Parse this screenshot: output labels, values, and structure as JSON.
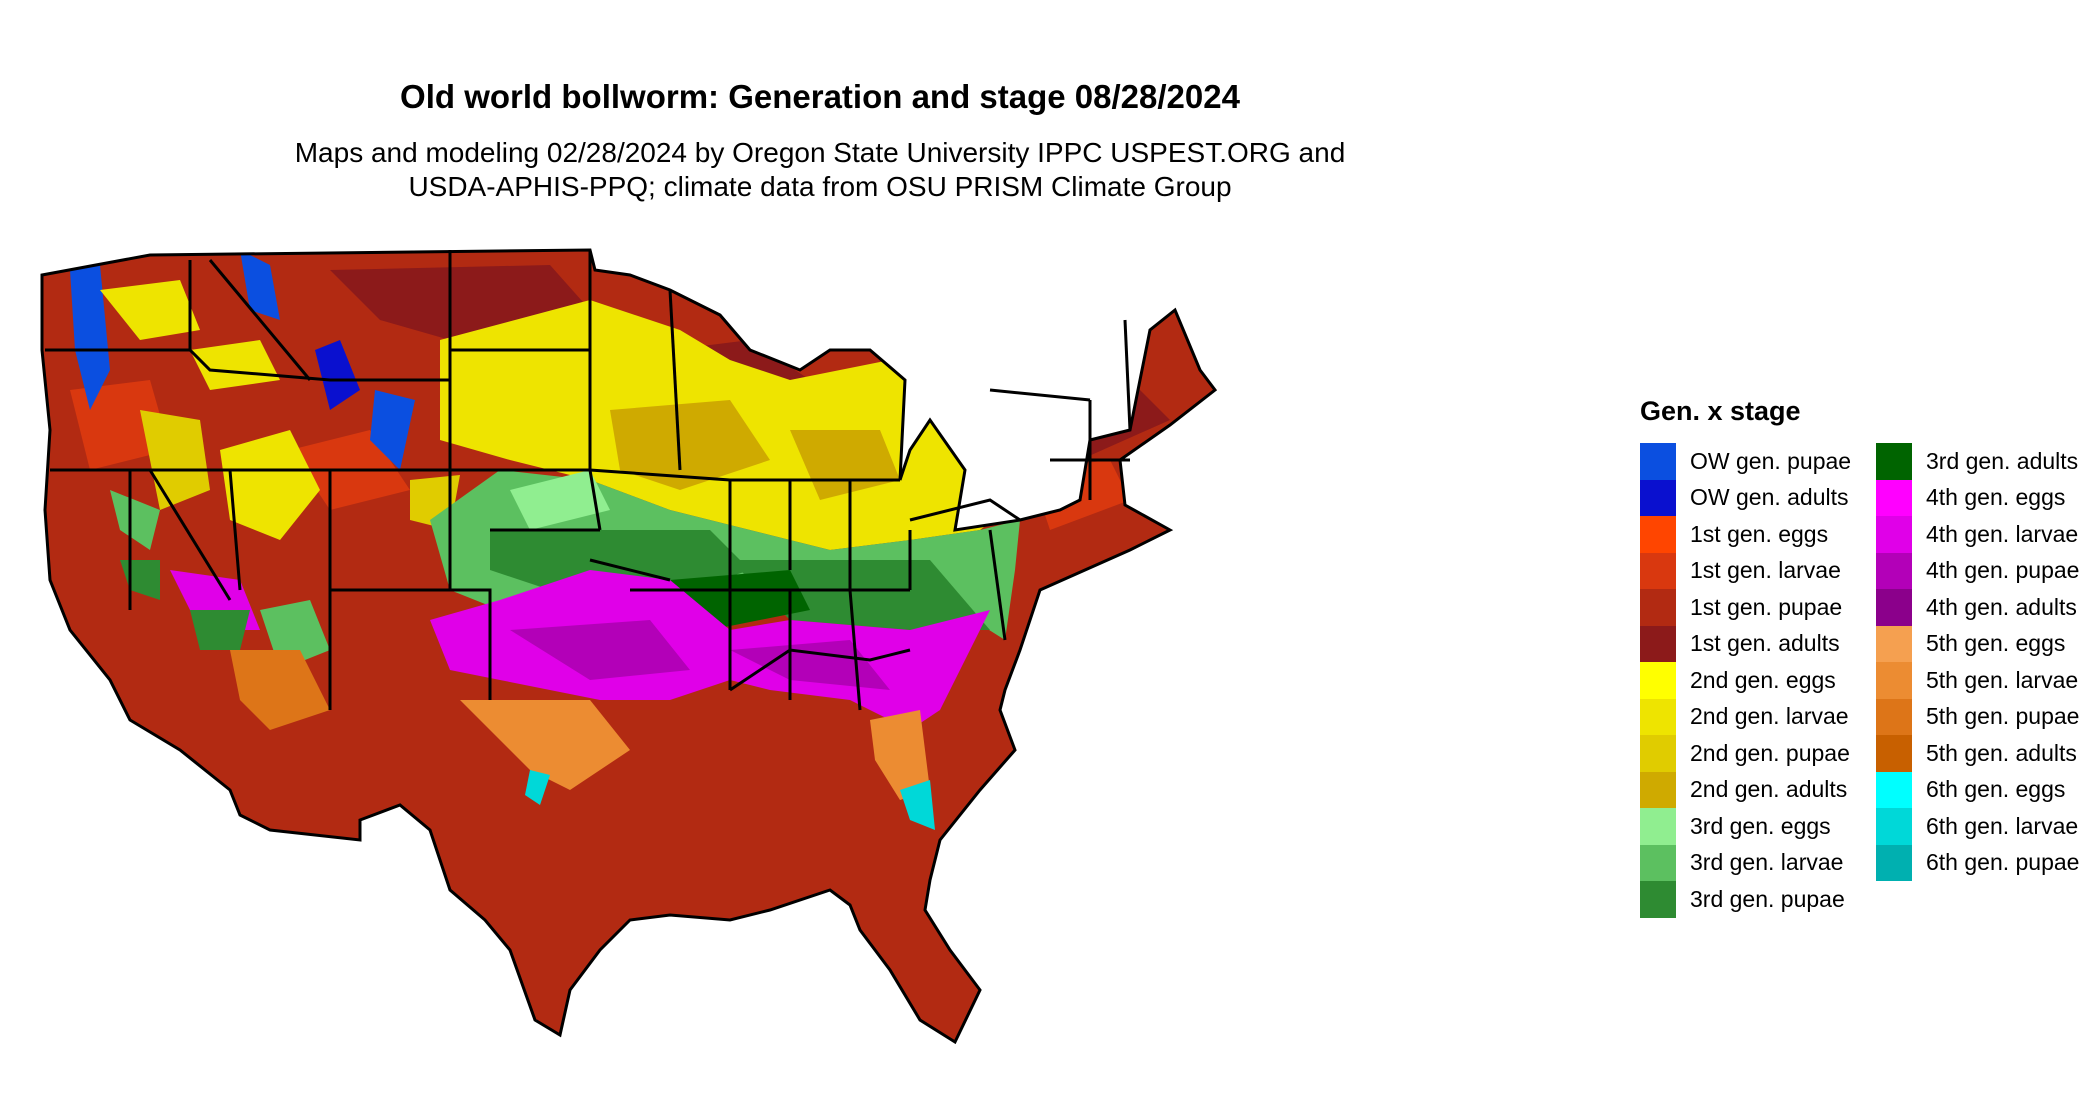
{
  "title": "Old world bollworm: Generation and stage 08/28/2024",
  "subtitle": {
    "line1": "Maps and modeling 02/28/2024 by Oregon State University IPPC USPEST.ORG and",
    "line2": "USDA-APHIS-PPQ; climate data from OSU PRISM Climate Group"
  },
  "legend": {
    "title": "Gen. x stage",
    "columns": [
      [
        {
          "label": "OW gen. pupae",
          "color": "#0B4FE0"
        },
        {
          "label": "OW gen. adults",
          "color": "#0A10CF"
        },
        {
          "label": "1st gen. eggs",
          "color": "#FF4500"
        },
        {
          "label": "1st gen. larvae",
          "color": "#D9380F"
        },
        {
          "label": "1st gen. pupae",
          "color": "#B22A12"
        },
        {
          "label": "1st gen. adults",
          "color": "#8C1A1A"
        },
        {
          "label": "2nd gen. eggs",
          "color": "#FFFF00"
        },
        {
          "label": "2nd gen. larvae",
          "color": "#EEE400"
        },
        {
          "label": "2nd gen. pupae",
          "color": "#E0CC00"
        },
        {
          "label": "2nd gen. adults",
          "color": "#CFAA00"
        },
        {
          "label": "3rd gen. eggs",
          "color": "#90EE90"
        },
        {
          "label": "3rd gen. larvae",
          "color": "#5CC060"
        },
        {
          "label": "3rd gen. pupae",
          "color": "#2E8B32"
        }
      ],
      [
        {
          "label": "3rd gen. adults",
          "color": "#006400"
        },
        {
          "label": "4th gen. eggs",
          "color": "#FF00FF"
        },
        {
          "label": "4th gen. larvae",
          "color": "#E000E8"
        },
        {
          "label": "4th gen. pupae",
          "color": "#B300B8"
        },
        {
          "label": "4th gen. adults",
          "color": "#8B008B"
        },
        {
          "label": "5th gen. eggs",
          "color": "#F5A050"
        },
        {
          "label": "5th gen. larvae",
          "color": "#EC8C32"
        },
        {
          "label": "5th gen. pupae",
          "color": "#DD7518"
        },
        {
          "label": "5th gen. adults",
          "color": "#C86000"
        },
        {
          "label": "6th gen. eggs",
          "color": "#00FFFF"
        },
        {
          "label": "6th gen. larvae",
          "color": "#00D8D8"
        },
        {
          "label": "6th gen. pupae",
          "color": "#00B0B0"
        }
      ]
    ]
  }
}
